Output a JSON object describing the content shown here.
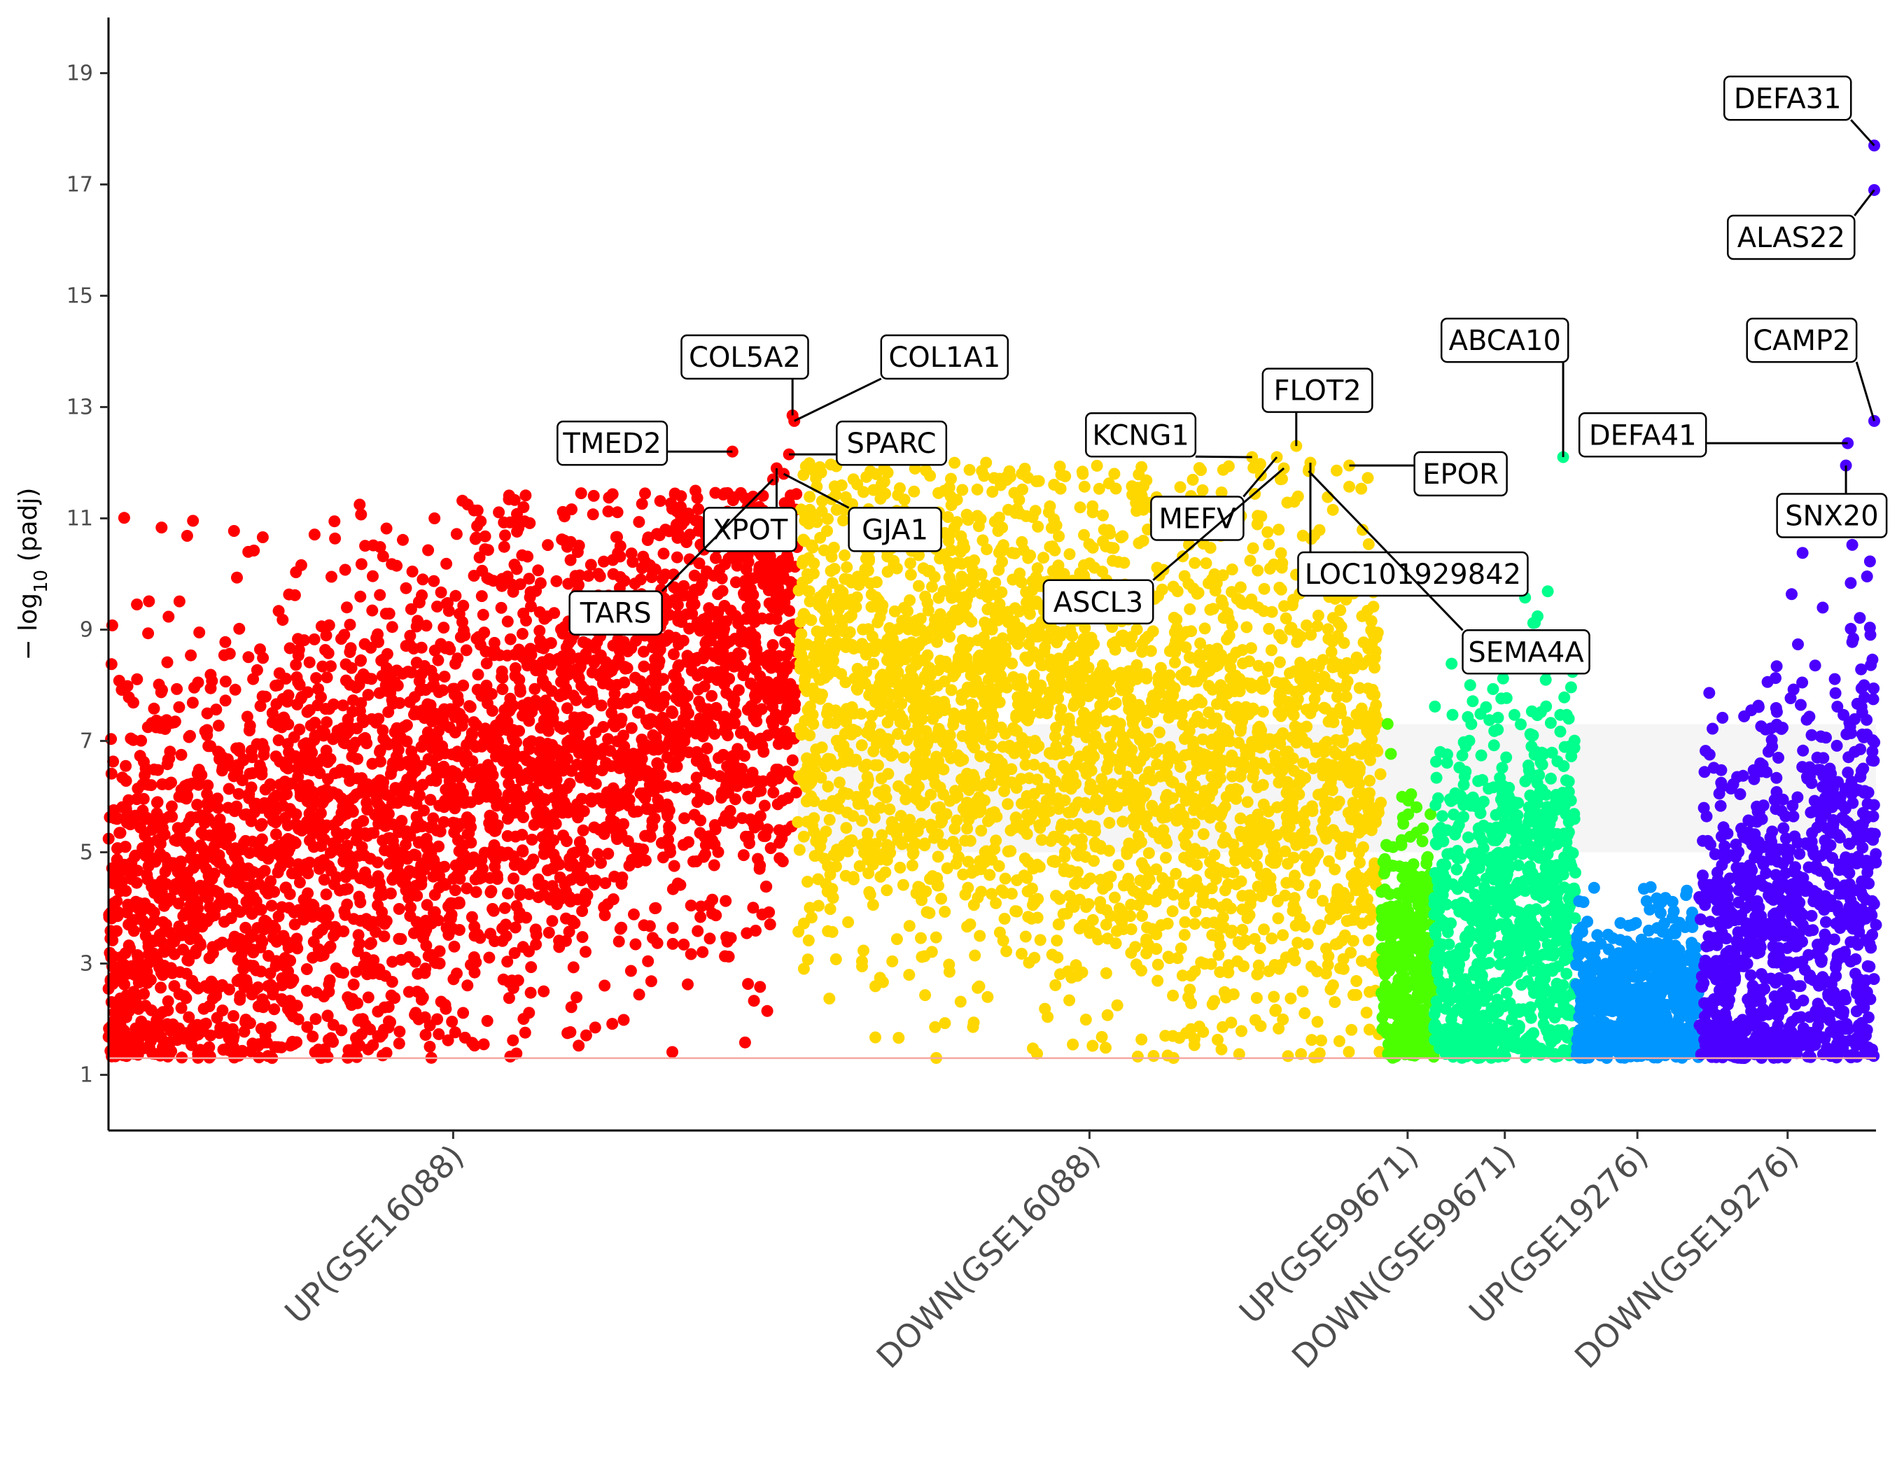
{
  "chart_data": {
    "type": "scatter",
    "title": "",
    "xlabel": "",
    "ylabel": "−log10 (padj)",
    "ylabel_base": "− log",
    "ylabel_sub": "10",
    "ylabel_rest": " (padj)",
    "ylim": [
      0,
      20
    ],
    "yticks": [
      "1",
      "3",
      "5",
      "7",
      "9",
      "11",
      "13",
      "15",
      "17",
      "19"
    ],
    "threshold": 1.3,
    "threshold_color": "#f4a7a2",
    "shaded_band": [
      5,
      7.3
    ],
    "groups": [
      {
        "name": "UP(GSE16088)",
        "color": "#ff0000",
        "x_range": [
          0.0,
          0.39
        ],
        "count": 3400,
        "trend": [
          3.6,
          8.6
        ],
        "ymin": 1.3,
        "ymax": 11.5
      },
      {
        "name": "DOWN(GSE16088)",
        "color": "#ffd700",
        "x_range": [
          0.39,
          0.72
        ],
        "count": 2900,
        "trend": [
          8.2,
          6.0
        ],
        "ymin": 1.3,
        "ymax": 12.0
      },
      {
        "name": "UP(GSE99671)",
        "color": "#4cff00",
        "x_range": [
          0.72,
          0.75
        ],
        "count": 380,
        "trend": [
          2.8,
          2.8
        ],
        "ymin": 1.3,
        "ymax": 7.5
      },
      {
        "name": "DOWN(GSE99671)",
        "color": "#00ff8c",
        "x_range": [
          0.75,
          0.83
        ],
        "count": 900,
        "trend": [
          2.8,
          4.5
        ],
        "ymin": 1.3,
        "ymax": 10.3
      },
      {
        "name": "UP(GSE19276)",
        "color": "#0096ff",
        "x_range": [
          0.83,
          0.9
        ],
        "count": 700,
        "trend": [
          2.2,
          2.2
        ],
        "ymin": 1.3,
        "ymax": 4.8
      },
      {
        "name": "DOWN(GSE19276)",
        "color": "#4b00ff",
        "x_range": [
          0.9,
          1.0
        ],
        "count": 1000,
        "trend": [
          2.6,
          4.6
        ],
        "ymin": 1.3,
        "ymax": 11.2
      }
    ],
    "annotations": [
      {
        "label": "COL5A2",
        "x": 0.387,
        "y": 12.85,
        "lx": 0.36,
        "ly": 13.9
      },
      {
        "label": "COL1A1",
        "x": 0.388,
        "y": 12.75,
        "lx": 0.473,
        "ly": 13.9
      },
      {
        "label": "TMED2",
        "x": 0.353,
        "y": 12.2,
        "lx": 0.285,
        "ly": 12.35
      },
      {
        "label": "SPARC",
        "x": 0.385,
        "y": 12.15,
        "lx": 0.443,
        "ly": 12.35
      },
      {
        "label": "XPOT",
        "x": 0.378,
        "y": 11.9,
        "lx": 0.363,
        "ly": 10.8
      },
      {
        "label": "GJA1",
        "x": 0.382,
        "y": 11.8,
        "lx": 0.445,
        "ly": 10.8
      },
      {
        "label": "TARS",
        "x": 0.376,
        "y": 11.7,
        "lx": 0.287,
        "ly": 9.3
      },
      {
        "label": "KCNG1",
        "x": 0.647,
        "y": 12.1,
        "lx": 0.584,
        "ly": 12.5
      },
      {
        "label": "FLOT2",
        "x": 0.672,
        "y": 12.3,
        "lx": 0.684,
        "ly": 13.3
      },
      {
        "label": "EPOR",
        "x": 0.702,
        "y": 11.95,
        "lx": 0.765,
        "ly": 11.8
      },
      {
        "label": "MEFV",
        "x": 0.661,
        "y": 12.1,
        "lx": 0.616,
        "ly": 11.0
      },
      {
        "label": "LOC101929842",
        "x": 0.68,
        "y": 12.0,
        "lx": 0.738,
        "ly": 10.0
      },
      {
        "label": "ASCL3",
        "x": 0.665,
        "y": 11.9,
        "lx": 0.56,
        "ly": 9.5
      },
      {
        "label": "SEMA4A",
        "x": 0.679,
        "y": 11.85,
        "lx": 0.802,
        "ly": 8.6
      },
      {
        "label": "ABCA10",
        "x": 0.823,
        "y": 12.1,
        "lx": 0.79,
        "ly": 14.2
      },
      {
        "label": "DEFA41",
        "x": 0.984,
        "y": 12.35,
        "lx": 0.868,
        "ly": 12.5
      },
      {
        "label": "SNX20",
        "x": 0.983,
        "y": 11.95,
        "lx": 0.975,
        "ly": 11.05
      },
      {
        "label": "CAMP2",
        "x": 0.999,
        "y": 12.75,
        "lx": 0.958,
        "ly": 14.2
      },
      {
        "label": "DEFA31",
        "x": 0.999,
        "y": 17.7,
        "lx": 0.95,
        "ly": 18.55
      },
      {
        "label": "ALAS22",
        "x": 0.999,
        "y": 16.9,
        "lx": 0.952,
        "ly": 16.05
      }
    ],
    "grid": false,
    "legend": "none"
  }
}
